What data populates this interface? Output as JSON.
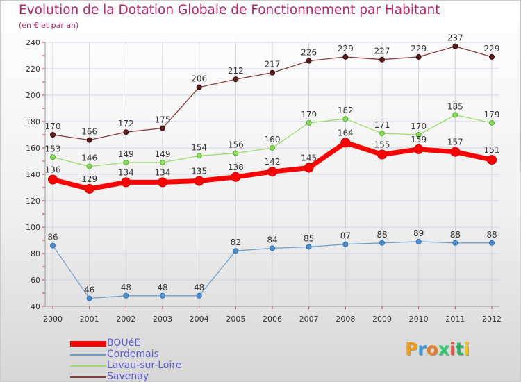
{
  "title": "Evolution de la Dotation Globale de Fonctionnement par Habitant",
  "subtitle": "(en € et par an)",
  "logo": "Proxiti",
  "chart_data": {
    "type": "line",
    "title": "Evolution de la Dotation Globale de Fonctionnement par Habitant",
    "ylabel": "(en € et par an)",
    "xlabel": "",
    "x": [
      "2000",
      "2001",
      "2002",
      "2003",
      "2004",
      "2005",
      "2006",
      "2007",
      "2008",
      "2009",
      "2010",
      "2011",
      "2012"
    ],
    "ylim": [
      40,
      240
    ],
    "yticks": [
      40,
      60,
      80,
      100,
      120,
      140,
      160,
      180,
      200,
      220,
      240
    ],
    "grid": true,
    "legend_position": "bottom-left",
    "series": [
      {
        "name": "BOUéE",
        "color": "#ff0000",
        "values": [
          136,
          129,
          134,
          134,
          135,
          138,
          142,
          145,
          164,
          155,
          159,
          157,
          151
        ]
      },
      {
        "name": "Cordemais",
        "color": "#6fa0cc",
        "values": [
          86,
          46,
          48,
          48,
          48,
          82,
          84,
          85,
          87,
          88,
          89,
          88,
          88
        ]
      },
      {
        "name": "Lavau-sur-Loire",
        "color": "#99dd66",
        "values": [
          153,
          146,
          149,
          149,
          154,
          156,
          160,
          179,
          182,
          171,
          170,
          185,
          179
        ]
      },
      {
        "name": "Savenay",
        "color": "#8b3a3a",
        "values": [
          170,
          166,
          172,
          175,
          206,
          212,
          217,
          226,
          229,
          227,
          229,
          237,
          229
        ]
      }
    ]
  }
}
